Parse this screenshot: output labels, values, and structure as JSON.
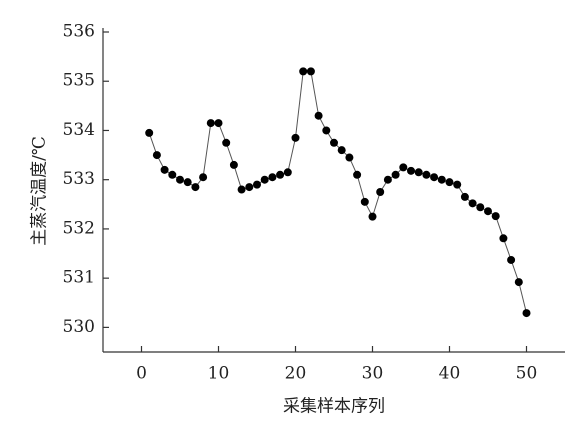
{
  "chart_data": {
    "type": "line",
    "x_label": "采集样本序列",
    "y_label": "主蒸汽温度/℃",
    "x": [
      1,
      2,
      3,
      4,
      5,
      6,
      7,
      8,
      9,
      10,
      11,
      12,
      13,
      14,
      15,
      16,
      17,
      18,
      19,
      20,
      21,
      22,
      23,
      24,
      25,
      26,
      27,
      28,
      29,
      30,
      31,
      32,
      33,
      34,
      35,
      36,
      37,
      38,
      39,
      40,
      41,
      42,
      43,
      44,
      45,
      46,
      47,
      48,
      49,
      50
    ],
    "series": [
      {
        "color": "#000000",
        "line_color": "#555555",
        "values": [
          533.95,
          533.5,
          533.2,
          533.1,
          533.0,
          532.95,
          532.85,
          533.05,
          534.15,
          534.15,
          533.75,
          533.3,
          532.8,
          532.85,
          532.9,
          533.0,
          533.05,
          533.1,
          533.15,
          533.85,
          535.2,
          535.2,
          534.3,
          534.0,
          533.75,
          533.6,
          533.45,
          533.1,
          532.55,
          532.25,
          532.75,
          533.0,
          533.1,
          533.25,
          533.18,
          533.15,
          533.1,
          533.05,
          533.0,
          532.95,
          532.9,
          532.65,
          532.52,
          532.44,
          532.36,
          532.26,
          531.81,
          531.37,
          530.92,
          530.29
        ]
      }
    ],
    "xlim": [
      -5,
      55
    ],
    "xticks": [
      0,
      10,
      20,
      30,
      40,
      50
    ],
    "ylim": [
      529.5,
      536
    ],
    "yticks": [
      530,
      531,
      532,
      533,
      534,
      535,
      536
    ]
  }
}
